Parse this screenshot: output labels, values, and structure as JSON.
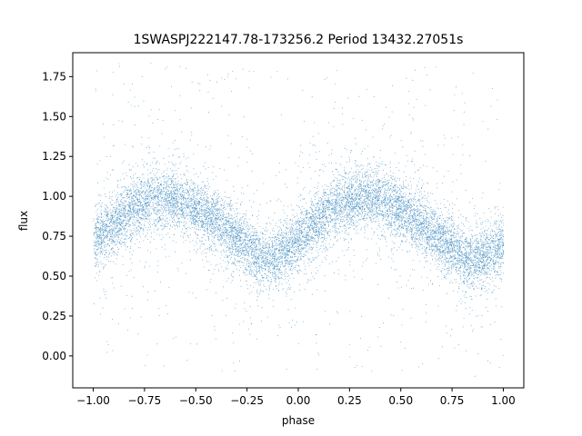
{
  "chart_data": {
    "type": "scatter",
    "title": "1SWASPJ222147.78-173256.2 Period 13432.27051s",
    "xlabel": "phase",
    "ylabel": "flux",
    "xlim": [
      -1.1,
      1.1
    ],
    "ylim": [
      -0.2,
      1.9
    ],
    "x_ticks": [
      -1.0,
      -0.75,
      -0.5,
      -0.25,
      0.0,
      0.25,
      0.5,
      0.75,
      1.0
    ],
    "x_tick_labels": [
      "−1.00",
      "−0.75",
      "−0.50",
      "−0.25",
      "0.00",
      "0.25",
      "0.50",
      "0.75",
      "1.00"
    ],
    "y_ticks": [
      0.0,
      0.25,
      0.5,
      0.75,
      1.0,
      1.25,
      1.5,
      1.75
    ],
    "y_tick_labels": [
      "0.00",
      "0.25",
      "0.50",
      "0.75",
      "1.00",
      "1.25",
      "1.50",
      "1.75"
    ],
    "grid": false,
    "legend": "none",
    "point_color": "#1f77b4",
    "series": [
      {
        "description_of_shape": "dense phase-folded light curve; sinusoid-like modulation",
        "x_range": [
          -1.0,
          1.0
        ],
        "mean_curve": {
          "x": [
            -1.0,
            -0.9,
            -0.8,
            -0.7,
            -0.6,
            -0.5,
            -0.4,
            -0.3,
            -0.2,
            -0.15,
            -0.1,
            0.0,
            0.1,
            0.2,
            0.3,
            0.4,
            0.5,
            0.6,
            0.7,
            0.8,
            0.85,
            0.9,
            1.0
          ],
          "y": [
            0.72,
            0.82,
            0.93,
            0.99,
            0.98,
            0.92,
            0.84,
            0.73,
            0.63,
            0.6,
            0.62,
            0.73,
            0.85,
            0.95,
            1.0,
            0.98,
            0.91,
            0.82,
            0.72,
            0.63,
            0.6,
            0.62,
            0.7
          ]
        },
        "scatter_sigma_core": 0.09,
        "outlier_range": [
          -0.1,
          1.85
        ],
        "n_points": 12000
      }
    ]
  }
}
